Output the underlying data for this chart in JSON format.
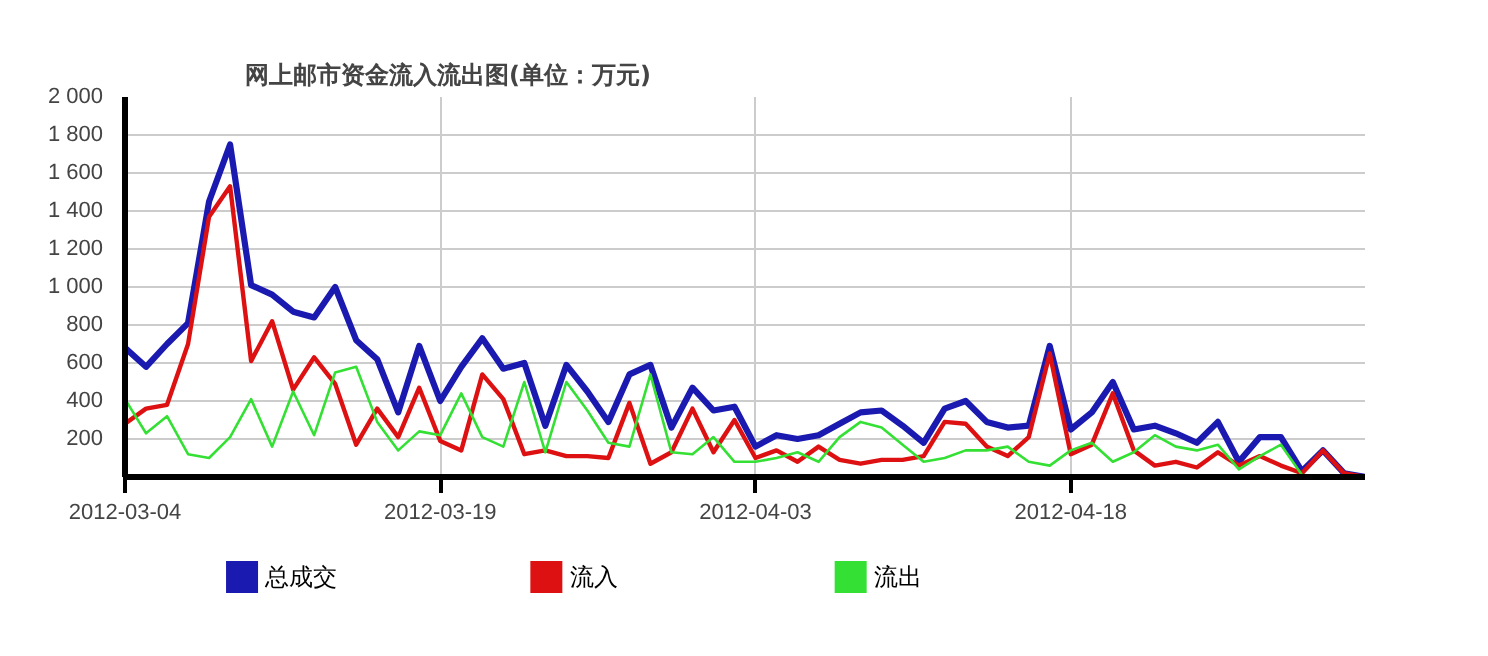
{
  "chart_data": {
    "type": "line",
    "title": "网上邮市资金流入流出图(单位：万元)",
    "x": [
      "2012-03-04",
      "2012-03-05",
      "2012-03-06",
      "2012-03-07",
      "2012-03-08",
      "2012-03-09",
      "2012-03-10",
      "2012-03-11",
      "2012-03-12",
      "2012-03-13",
      "2012-03-14",
      "2012-03-15",
      "2012-03-16",
      "2012-03-17",
      "2012-03-18",
      "2012-03-19",
      "2012-03-20",
      "2012-03-21",
      "2012-03-22",
      "2012-03-23",
      "2012-03-24",
      "2012-03-25",
      "2012-03-26",
      "2012-03-27",
      "2012-03-28",
      "2012-03-29",
      "2012-03-30",
      "2012-03-31",
      "2012-04-01",
      "2012-04-02",
      "2012-04-03",
      "2012-04-04",
      "2012-04-05",
      "2012-04-06",
      "2012-04-07",
      "2012-04-08",
      "2012-04-09",
      "2012-04-10",
      "2012-04-11",
      "2012-04-12",
      "2012-04-13",
      "2012-04-14",
      "2012-04-15",
      "2012-04-16",
      "2012-04-17",
      "2012-04-18",
      "2012-04-19",
      "2012-04-20",
      "2012-04-21",
      "2012-04-22",
      "2012-04-23",
      "2012-04-24",
      "2012-04-25",
      "2012-04-26",
      "2012-04-27",
      "2012-04-28",
      "2012-04-29",
      "2012-04-30",
      "2012-05-01",
      "2012-05-02"
    ],
    "series": [
      {
        "name": "总成交",
        "color": "#1a1ab0",
        "values": [
          680,
          580,
          700,
          810,
          1450,
          1750,
          1010,
          960,
          870,
          840,
          1000,
          720,
          620,
          340,
          690,
          400,
          580,
          730,
          570,
          600,
          270,
          590,
          450,
          290,
          540,
          590,
          260,
          470,
          350,
          370,
          160,
          220,
          200,
          220,
          280,
          340,
          350,
          270,
          180,
          360,
          400,
          290,
          260,
          270,
          690,
          250,
          340,
          500,
          250,
          270,
          230,
          180,
          290,
          80,
          210,
          210,
          30,
          140,
          20,
          0
        ]
      },
      {
        "name": "流入",
        "color": "#dd1111",
        "values": [
          280,
          360,
          380,
          700,
          1370,
          1530,
          610,
          820,
          460,
          630,
          490,
          170,
          360,
          210,
          470,
          190,
          140,
          540,
          410,
          120,
          140,
          110,
          110,
          100,
          390,
          70,
          130,
          360,
          130,
          300,
          100,
          140,
          80,
          160,
          90,
          70,
          90,
          90,
          110,
          290,
          280,
          160,
          110,
          210,
          650,
          120,
          170,
          440,
          140,
          60,
          80,
          50,
          130,
          60,
          110,
          60,
          20,
          140,
          20,
          0
        ]
      },
      {
        "name": "流出",
        "color": "#33e033",
        "values": [
          410,
          230,
          320,
          120,
          100,
          210,
          410,
          160,
          450,
          220,
          550,
          580,
          290,
          140,
          240,
          220,
          440,
          210,
          160,
          500,
          130,
          500,
          350,
          180,
          160,
          540,
          130,
          120,
          210,
          80,
          80,
          100,
          130,
          80,
          210,
          290,
          260,
          170,
          80,
          100,
          140,
          140,
          160,
          80,
          60,
          140,
          180,
          80,
          130,
          220,
          160,
          140,
          170,
          40,
          110,
          170,
          10,
          0,
          null,
          null
        ]
      }
    ],
    "xlim": [
      "2012-03-04",
      "2012-05-02"
    ],
    "xticks": [
      "2012-03-04",
      "2012-03-19",
      "2012-04-03",
      "2012-04-18"
    ],
    "ylim": [
      0,
      2000
    ],
    "yticks": [
      200,
      400,
      600,
      800,
      {
        "value": 1000,
        "label": "1 000"
      },
      {
        "value": 1200,
        "label": "1 200"
      },
      {
        "value": 1400,
        "label": "1 400"
      },
      {
        "value": 1600,
        "label": "1 600"
      },
      {
        "value": 1800,
        "label": "1 800"
      },
      {
        "value": 2000,
        "label": "2 000"
      }
    ],
    "grid": true,
    "legend": "bottom",
    "marker": "none",
    "line_style": "solid"
  }
}
